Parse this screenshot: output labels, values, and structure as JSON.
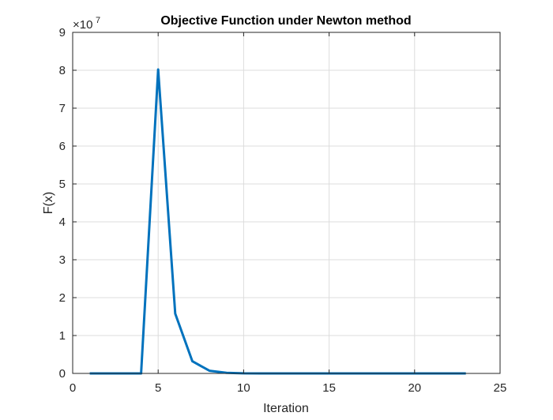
{
  "chart_data": {
    "type": "line",
    "title": "Objective Function under Newton method",
    "xlabel": "Iteration",
    "ylabel": "F(x)",
    "exponent_label": {
      "base": "×10",
      "power": "7"
    },
    "xlim": [
      0,
      25
    ],
    "ylim": [
      0,
      9
    ],
    "xticks": [
      "0",
      "5",
      "10",
      "15",
      "20",
      "25"
    ],
    "yticks": [
      "0",
      "1",
      "2",
      "3",
      "4",
      "5",
      "6",
      "7",
      "8",
      "9"
    ],
    "grid": true,
    "series": [
      {
        "color": "#0072BD",
        "x": [
          1,
          2,
          3,
          4,
          5,
          6,
          7,
          8,
          9,
          10,
          11,
          12,
          13,
          14,
          15,
          16,
          17,
          18,
          19,
          20,
          21,
          22,
          23
        ],
        "y": [
          0,
          0,
          0,
          0,
          8.02,
          1.58,
          0.32,
          0.07,
          0.015,
          0.003,
          0,
          0,
          0,
          0,
          0,
          0,
          0,
          0,
          0,
          0,
          0,
          0,
          0
        ]
      }
    ]
  }
}
